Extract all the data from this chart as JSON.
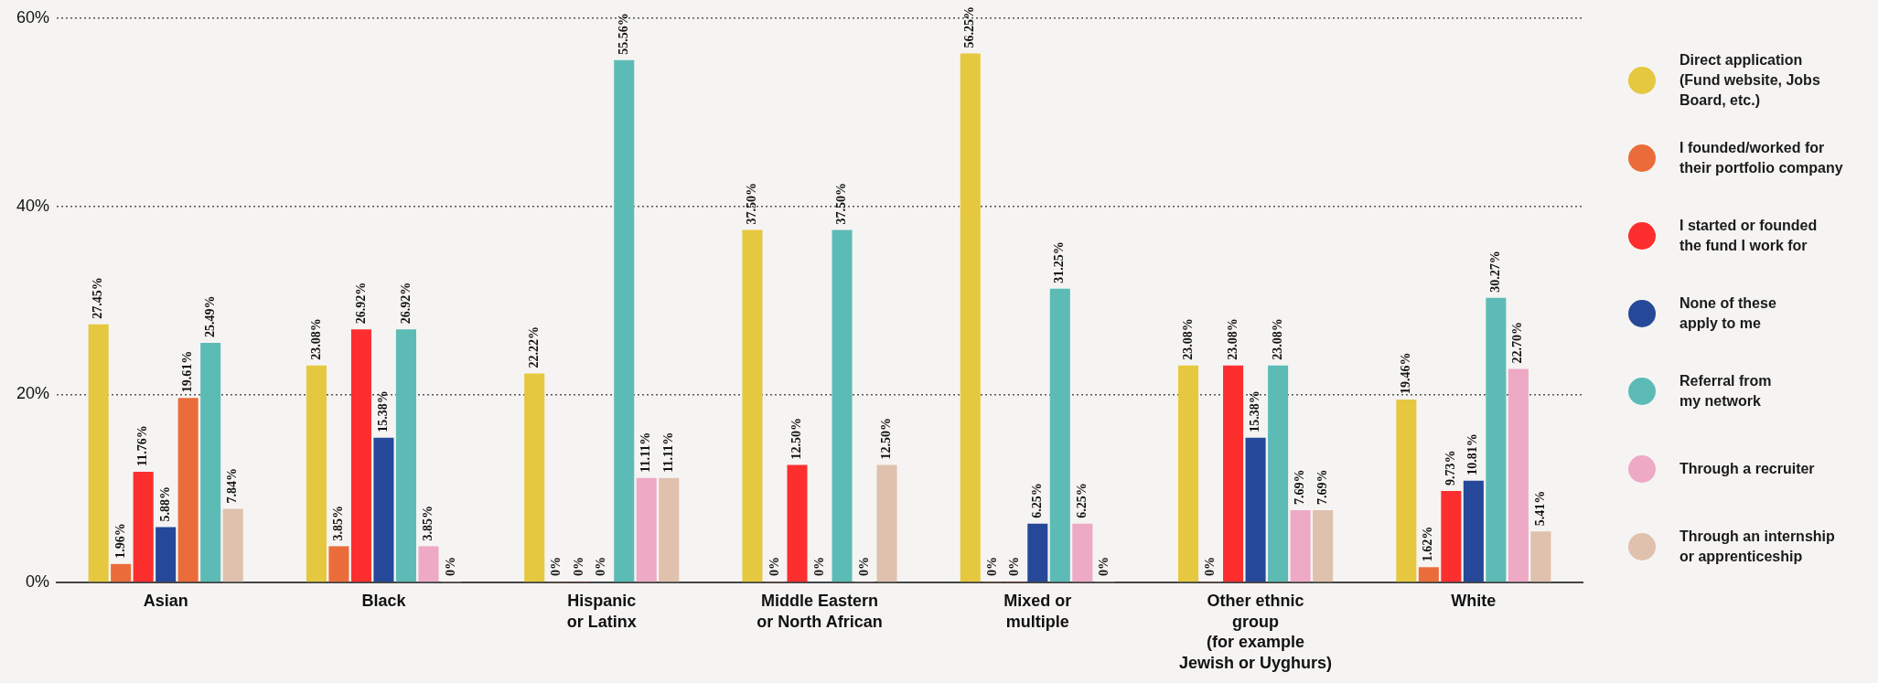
{
  "chart_data": {
    "type": "bar",
    "categories": [
      "Asian",
      "Black",
      "Hispanic\nor Latinx",
      "Middle Eastern\nor North African",
      "Mixed or\nmultiple",
      "Other ethnic\ngroup\n(for example\nJewish or Uyghurs)",
      "White"
    ],
    "ylim": [
      0,
      60
    ],
    "yticks": [
      {
        "value": 0,
        "label": "0%"
      },
      {
        "value": 20,
        "label": "20%"
      },
      {
        "value": 40,
        "label": "40%"
      },
      {
        "value": 60,
        "label": "60%"
      }
    ],
    "grid": "y",
    "legend": "right",
    "series": [
      {
        "name": "Direct application\n(Fund website, Jobs\nBoard, etc.)",
        "color": "#e5c83f",
        "values": [
          27.45,
          23.08,
          22.22,
          37.5,
          56.25,
          23.08,
          19.46
        ],
        "value_labels": [
          "27.45%",
          "23.08%",
          "22.22%",
          "37.50%",
          "56.25%",
          "23.08%",
          "19.46%"
        ]
      },
      {
        "name": "I founded/worked for\ntheir portfolio company",
        "color": "#eb6c3b",
        "values": [
          1.96,
          3.85,
          0,
          0,
          0,
          0,
          1.62
        ],
        "value_labels": [
          "1.96%",
          "3.85%",
          "0%",
          "0%",
          "0%",
          "0%",
          "1.62%"
        ]
      },
      {
        "name": "I started or founded\nthe fund I work for",
        "color": "#fd2e2e",
        "values": [
          11.76,
          26.92,
          0,
          12.5,
          0,
          23.08,
          9.73
        ],
        "value_labels": [
          "11.76%",
          "26.92%",
          "0%",
          "12.50%",
          "0%",
          "23.08%",
          "9.73%"
        ]
      },
      {
        "name": "None of these\napply to me",
        "color": "#254898",
        "values": [
          5.88,
          15.38,
          0,
          0,
          6.25,
          15.38,
          10.81
        ],
        "value_labels": [
          "5.88%",
          "15.38%",
          "0%",
          "0%",
          "6.25%",
          "15.38%",
          "10.81%"
        ]
      },
      {
        "name": "Referral from\nmy network",
        "color": "#5dbbb6",
        "colors": [
          "#eb6c3b",
          "#5dbbb6",
          "#5dbbb6",
          "#5dbbb6",
          "#5dbbb6",
          "#5dbbb6",
          "#5dbbb6"
        ],
        "values": [
          19.61,
          26.92,
          55.56,
          37.5,
          31.25,
          23.08,
          30.27
        ],
        "value_labels": [
          "19.61%",
          "26.92%",
          "55.56%",
          "37.50%",
          "31.25%",
          "23.08%",
          "30.27%"
        ]
      },
      {
        "name": "Through a recruiter",
        "color": "#eea9c5",
        "colors": [
          "#5dbbb6",
          "#eea9c5",
          "#eea9c5",
          "#eea9c5",
          "#eea9c5",
          "#eea9c5",
          "#eea9c5"
        ],
        "values": [
          25.49,
          3.85,
          11.11,
          0,
          6.25,
          7.69,
          22.7
        ],
        "value_labels": [
          "25.49%",
          "3.85%",
          "11.11%",
          "0%",
          "6.25%",
          "7.69%",
          "22.70%"
        ]
      },
      {
        "name": "Through an internship\nor apprenticeship",
        "color": "#dfc1ae",
        "values": [
          7.84,
          0,
          11.11,
          12.5,
          0,
          7.69,
          5.41
        ],
        "value_labels": [
          "7.84%",
          "0%",
          "11.11%",
          "12.50%",
          "0%",
          "7.69%",
          "5.41%"
        ]
      }
    ]
  }
}
